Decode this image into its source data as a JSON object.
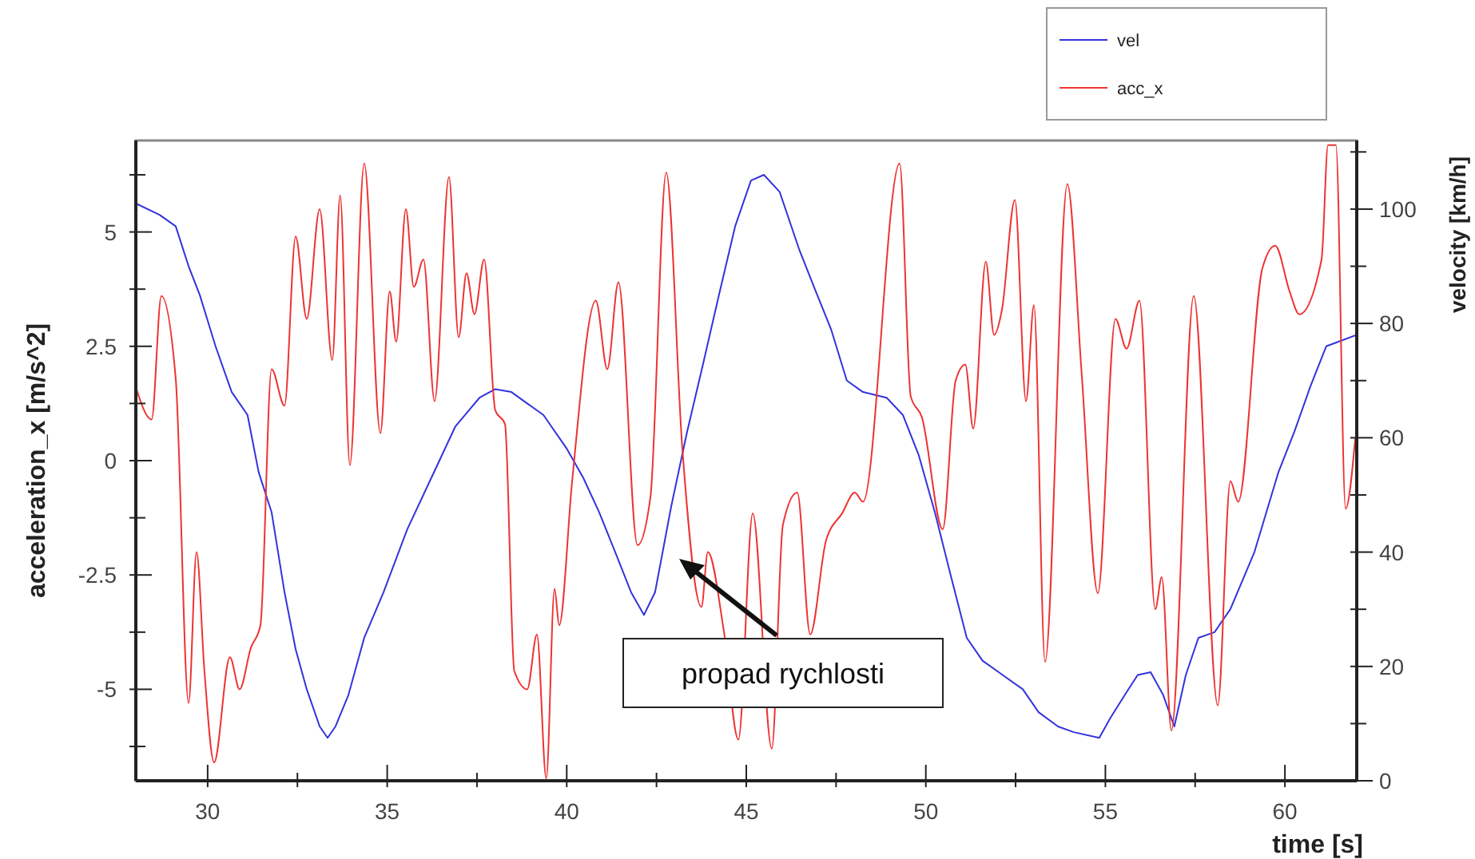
{
  "chart_data": {
    "type": "line",
    "xlabel": "time [s]",
    "ylabel": "acceleration_x [m/s^2]",
    "y2label": "velocity [km/h]",
    "xlim": [
      28,
      62
    ],
    "xticks": [
      30,
      {
        "value": 32.5,
        "label": null
      },
      35,
      {
        "value": 37.5,
        "label": null
      },
      40,
      {
        "value": 42.5,
        "label": null
      },
      45,
      {
        "value": 47.5,
        "label": null
      },
      50,
      {
        "value": 52.5,
        "label": null
      },
      55,
      {
        "value": 57.5,
        "label": null
      },
      60
    ],
    "ylim": [
      -7,
      7
    ],
    "yticks": [
      {
        "value": -6.25,
        "label": null
      },
      -5,
      {
        "value": -3.75,
        "label": null
      },
      -2.5,
      {
        "value": -1.25,
        "label": null
      },
      0,
      {
        "value": 1.25,
        "label": null
      },
      2.5,
      {
        "value": 3.75,
        "label": null
      },
      5,
      {
        "value": 6.25,
        "label": null
      }
    ],
    "y2lim": [
      0,
      112
    ],
    "y2ticks": [
      0,
      {
        "value": 10,
        "label": null
      },
      20,
      {
        "value": 30,
        "label": null
      },
      40,
      {
        "value": 50,
        "label": null
      },
      60,
      {
        "value": 70,
        "label": null
      },
      80,
      {
        "value": 90,
        "label": null
      },
      100,
      {
        "value": 110,
        "label": null
      }
    ],
    "grid": false,
    "legend": "top right",
    "annotations": [
      "propad rychlosti"
    ],
    "series": [
      {
        "name": "vel",
        "color": "#3333dd",
        "axis": "y2",
        "x": [
          28.0,
          28.66,
          29.11,
          29.47,
          29.78,
          30.22,
          30.67,
          31.11,
          31.42,
          31.78,
          32.14,
          32.45,
          32.76,
          33.12,
          33.34,
          33.56,
          33.92,
          34.36,
          34.9,
          35.56,
          36.23,
          36.9,
          37.57,
          38.01,
          38.46,
          38.9,
          39.35,
          40.01,
          40.46,
          40.9,
          41.35,
          41.79,
          42.15,
          42.46,
          42.91,
          43.35,
          43.8,
          44.24,
          44.69,
          45.13,
          45.49,
          45.93,
          46.47,
          46.91,
          47.36,
          47.8,
          48.25,
          48.91,
          49.36,
          49.8,
          50.25,
          50.69,
          51.14,
          51.58,
          52.03,
          52.7,
          53.14,
          53.68,
          54.12,
          54.83,
          55.14,
          55.59,
          55.9,
          56.26,
          56.61,
          56.92,
          57.24,
          57.59,
          58.04,
          58.48,
          59.15,
          59.82,
          60.26,
          60.71,
          61.15,
          62.0
        ],
        "values": [
          101,
          99,
          97,
          90,
          85,
          76,
          68,
          64,
          54,
          47,
          33,
          23,
          16,
          9.5,
          7.5,
          9.5,
          15,
          25,
          33,
          44,
          53,
          62,
          67,
          68.5,
          68,
          66,
          64,
          58,
          53,
          47,
          40,
          33,
          29,
          33,
          48,
          61,
          73,
          85,
          97,
          105,
          106,
          103,
          93,
          86,
          79,
          70,
          68,
          67,
          64,
          57,
          47,
          36,
          25,
          21,
          19,
          16,
          12,
          9.5,
          8.5,
          7.5,
          11,
          15.5,
          18.5,
          19,
          15,
          9.5,
          18.5,
          25,
          26,
          30,
          40,
          54,
          61,
          69,
          76,
          78
        ]
      },
      {
        "name": "acc_x",
        "color": "#ee3333",
        "x": [
          28.0,
          28.44,
          28.71,
          29.11,
          29.47,
          29.69,
          29.91,
          30.18,
          30.62,
          30.89,
          31.2,
          31.47,
          31.78,
          32.14,
          32.45,
          32.76,
          33.12,
          33.47,
          33.69,
          33.96,
          34.36,
          34.81,
          35.07,
          35.25,
          35.52,
          35.74,
          36.01,
          36.32,
          36.72,
          36.99,
          37.21,
          37.43,
          37.7,
          38.01,
          38.28,
          38.54,
          38.9,
          39.17,
          39.43,
          39.66,
          39.79,
          40.15,
          40.81,
          41.13,
          41.44,
          41.97,
          42.33,
          42.77,
          43.22,
          43.75,
          43.93,
          44.37,
          44.78,
          45.18,
          45.71,
          46.02,
          46.42,
          46.78,
          47.22,
          47.67,
          48.02,
          48.25,
          49.27,
          49.58,
          49.89,
          50.47,
          50.83,
          51.1,
          51.32,
          51.67,
          51.9,
          52.12,
          52.48,
          52.79,
          53.01,
          53.32,
          53.94,
          54.34,
          54.79,
          55.28,
          55.59,
          55.95,
          56.39,
          56.57,
          56.84,
          57.46,
          58.13,
          58.48,
          58.7,
          59.37,
          59.73,
          60.13,
          60.4,
          61.02,
          61.2,
          61.42,
          61.69,
          61.96
        ],
        "values": [
          1.6,
          0.9,
          3.6,
          1.8,
          -5.3,
          -2.0,
          -4.6,
          -6.6,
          -4.3,
          -5.0,
          -4.1,
          -3.6,
          2.0,
          1.2,
          4.9,
          3.1,
          5.5,
          2.2,
          5.8,
          -0.1,
          6.5,
          0.6,
          3.7,
          2.6,
          5.5,
          3.8,
          4.4,
          1.3,
          6.2,
          2.7,
          4.1,
          3.2,
          4.4,
          1.1,
          0.8,
          -4.6,
          -5.0,
          -3.8,
          -6.95,
          -2.8,
          -3.6,
          -0.45,
          3.5,
          2.0,
          3.9,
          -1.85,
          -0.8,
          6.3,
          0.25,
          -3.2,
          -2.0,
          -3.7,
          -6.1,
          -1.15,
          -6.3,
          -1.4,
          -0.7,
          -3.8,
          -1.75,
          -1.15,
          -0.7,
          -0.9,
          6.5,
          1.4,
          0.95,
          -1.5,
          1.75,
          2.1,
          0.7,
          4.35,
          2.75,
          3.3,
          5.7,
          1.3,
          3.4,
          -4.4,
          6.05,
          1.9,
          -2.9,
          3.1,
          2.45,
          3.5,
          -3.25,
          -2.55,
          -5.9,
          3.6,
          -5.35,
          -0.45,
          -0.9,
          4.2,
          4.7,
          3.7,
          3.2,
          4.4,
          6.9,
          6.9,
          -1.05,
          0.5
        ]
      }
    ]
  }
}
